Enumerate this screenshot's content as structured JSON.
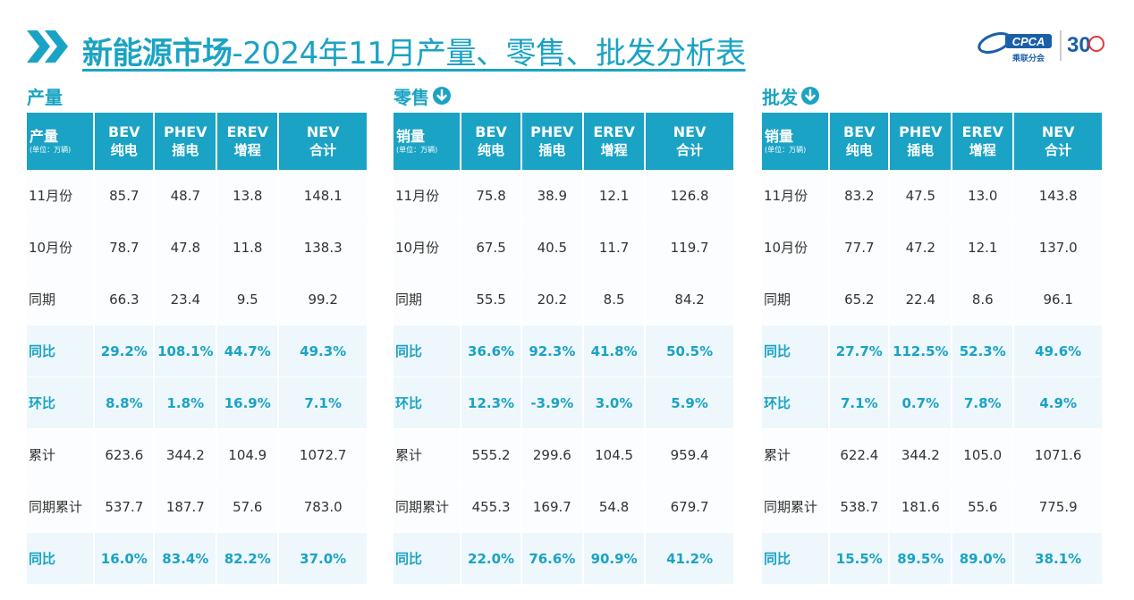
{
  "title": {
    "bold": "新能源市场",
    "rest": "-2024年11月产量、零售、批发分析表"
  },
  "logo": {
    "brand": "CPCA",
    "sub": "乘联分会",
    "anniv": "30"
  },
  "colors": {
    "accent": "#1aa3c4",
    "highlight_row_bg": "#eef7fb"
  },
  "headers": {
    "c1": [
      "BEV",
      "纯电"
    ],
    "c2": [
      "PHEV",
      "插电"
    ],
    "c3": [
      "EREV",
      "增程"
    ],
    "c4": [
      "NEV",
      "合计"
    ],
    "unit": "(单位：万辆)"
  },
  "panels": [
    {
      "name": "产量",
      "has_icon": false,
      "corner_label": "产量",
      "rows": [
        {
          "label": "11月份",
          "v": [
            "85.7",
            "48.7",
            "13.8",
            "148.1"
          ],
          "hl": false
        },
        {
          "label": "10月份",
          "v": [
            "78.7",
            "47.8",
            "11.8",
            "138.3"
          ],
          "hl": false
        },
        {
          "label": "同期",
          "v": [
            "66.3",
            "23.4",
            "9.5",
            "99.2"
          ],
          "hl": false
        },
        {
          "label": "同比",
          "v": [
            "29.2%",
            "108.1%",
            "44.7%",
            "49.3%"
          ],
          "hl": true
        },
        {
          "label": "环比",
          "v": [
            "8.8%",
            "1.8%",
            "16.9%",
            "7.1%"
          ],
          "hl": true
        },
        {
          "label": "累计",
          "v": [
            "623.6",
            "344.2",
            "104.9",
            "1072.7"
          ],
          "hl": false
        },
        {
          "label": "同期累计",
          "v": [
            "537.7",
            "187.7",
            "57.6",
            "783.0"
          ],
          "hl": false
        },
        {
          "label": "同比",
          "v": [
            "16.0%",
            "83.4%",
            "82.2%",
            "37.0%"
          ],
          "hl": true
        }
      ]
    },
    {
      "name": "零售",
      "has_icon": true,
      "icon": "arrow-down-circle-icon",
      "corner_label": "销量",
      "rows": [
        {
          "label": "11月份",
          "v": [
            "75.8",
            "38.9",
            "12.1",
            "126.8"
          ],
          "hl": false
        },
        {
          "label": "10月份",
          "v": [
            "67.5",
            "40.5",
            "11.7",
            "119.7"
          ],
          "hl": false
        },
        {
          "label": "同期",
          "v": [
            "55.5",
            "20.2",
            "8.5",
            "84.2"
          ],
          "hl": false
        },
        {
          "label": "同比",
          "v": [
            "36.6%",
            "92.3%",
            "41.8%",
            "50.5%"
          ],
          "hl": true
        },
        {
          "label": "环比",
          "v": [
            "12.3%",
            "-3.9%",
            "3.0%",
            "5.9%"
          ],
          "hl": true
        },
        {
          "label": "累计",
          "v": [
            "555.2",
            "299.6",
            "104.5",
            "959.4"
          ],
          "hl": false
        },
        {
          "label": "同期累计",
          "v": [
            "455.3",
            "169.7",
            "54.8",
            "679.7"
          ],
          "hl": false
        },
        {
          "label": "同比",
          "v": [
            "22.0%",
            "76.6%",
            "90.9%",
            "41.2%"
          ],
          "hl": true
        }
      ]
    },
    {
      "name": "批发",
      "has_icon": true,
      "icon": "arrow-down-circle-icon",
      "corner_label": "销量",
      "rows": [
        {
          "label": "11月份",
          "v": [
            "83.2",
            "47.5",
            "13.0",
            "143.8"
          ],
          "hl": false
        },
        {
          "label": "10月份",
          "v": [
            "77.7",
            "47.2",
            "12.1",
            "137.0"
          ],
          "hl": false
        },
        {
          "label": "同期",
          "v": [
            "65.2",
            "22.4",
            "8.6",
            "96.1"
          ],
          "hl": false
        },
        {
          "label": "同比",
          "v": [
            "27.7%",
            "112.5%",
            "52.3%",
            "49.6%"
          ],
          "hl": true
        },
        {
          "label": "环比",
          "v": [
            "7.1%",
            "0.7%",
            "7.8%",
            "4.9%"
          ],
          "hl": true
        },
        {
          "label": "累计",
          "v": [
            "622.4",
            "344.2",
            "105.0",
            "1071.6"
          ],
          "hl": false
        },
        {
          "label": "同期累计",
          "v": [
            "538.7",
            "181.6",
            "55.6",
            "775.9"
          ],
          "hl": false
        },
        {
          "label": "同比",
          "v": [
            "15.5%",
            "89.5%",
            "89.0%",
            "38.1%"
          ],
          "hl": true
        }
      ]
    }
  ]
}
